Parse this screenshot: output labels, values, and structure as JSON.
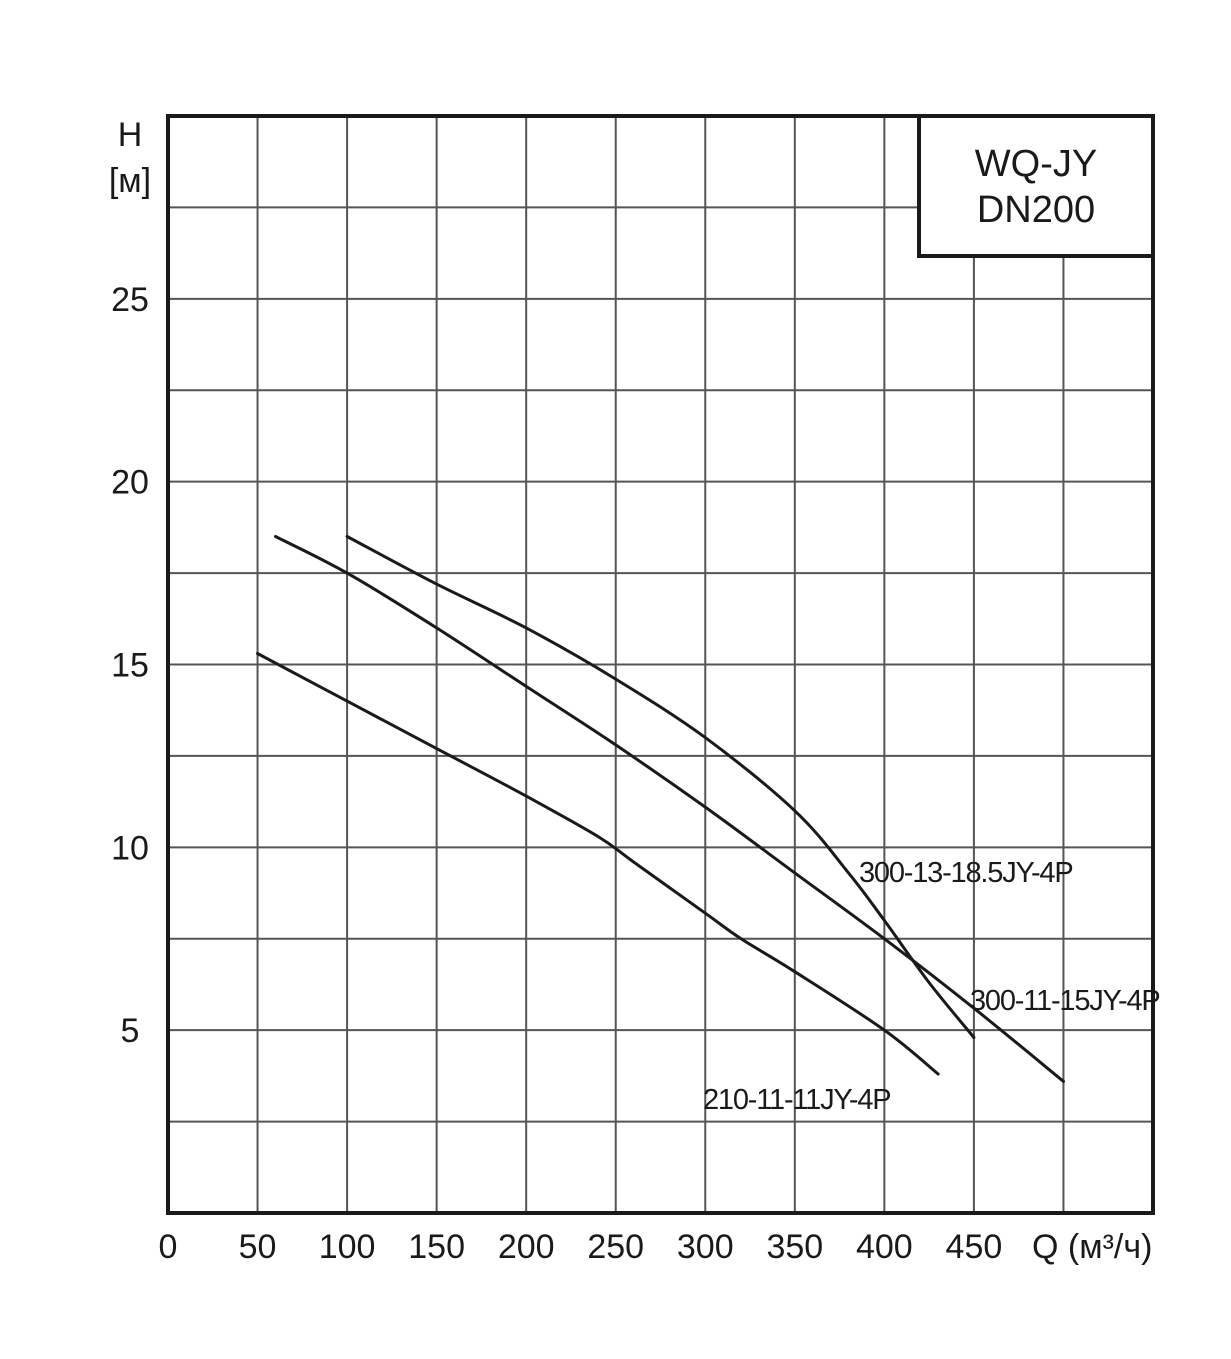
{
  "chart_data": {
    "type": "line",
    "title": [
      "WQ-JY",
      "DN200"
    ],
    "ylabel": [
      "H",
      "[м]"
    ],
    "xlabel": "Q (м³/ч)",
    "xlim": [
      0,
      550
    ],
    "ylim": [
      0,
      30
    ],
    "x_ticks": [
      0,
      50,
      100,
      150,
      200,
      250,
      300,
      350,
      400,
      450
    ],
    "y_ticks": [
      5,
      10,
      15,
      20,
      25
    ],
    "x_grid_step": 50,
    "y_grid_step": 2.5,
    "grid": true,
    "series": [
      {
        "name": "300-13-18.5JY-4P",
        "x": [
          100,
          150,
          200,
          250,
          300,
          350,
          380,
          400,
          425,
          450
        ],
        "y": [
          18.5,
          17.2,
          16.0,
          14.6,
          13.0,
          11.0,
          9.3,
          8.0,
          6.3,
          4.8
        ]
      },
      {
        "name": "300-11-15JY-4P",
        "x": [
          60,
          100,
          150,
          200,
          250,
          300,
          350,
          400,
          450,
          500
        ],
        "y": [
          18.5,
          17.5,
          16.0,
          14.4,
          12.8,
          11.1,
          9.3,
          7.5,
          5.6,
          3.6
        ]
      },
      {
        "name": "210-11-11JY-4P",
        "x": [
          50,
          100,
          150,
          200,
          240,
          260,
          300,
          320,
          350,
          400,
          430
        ],
        "y": [
          15.3,
          14.0,
          12.7,
          11.4,
          10.3,
          9.6,
          8.2,
          7.5,
          6.6,
          5.0,
          3.8
        ]
      }
    ]
  }
}
